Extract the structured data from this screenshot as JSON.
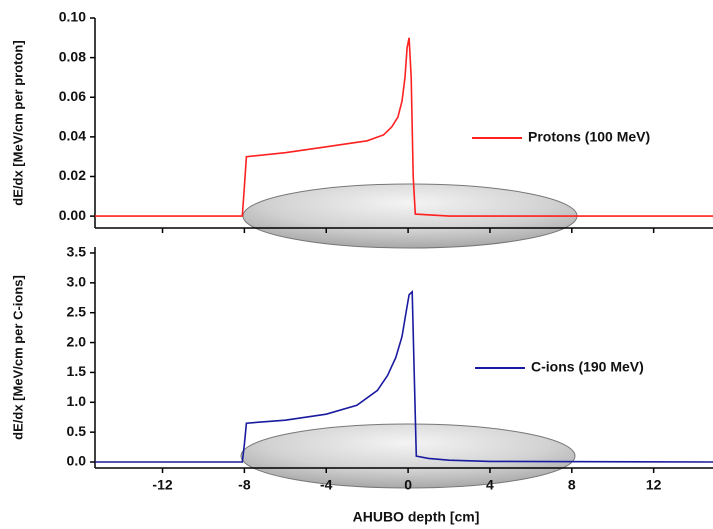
{
  "chart_data": [
    {
      "type": "line",
      "ylabel": "dE/dx [MeV/cm per proton]",
      "x": [
        -15.3,
        -8.1,
        -8.0,
        -7.9,
        -6,
        -4,
        -2,
        -1.2,
        -0.8,
        -0.5,
        -0.3,
        -0.15,
        -0.05,
        0.05,
        0.15,
        0.25,
        0.35,
        2,
        14.9
      ],
      "series": [
        {
          "name": "Protons (100 MeV)",
          "color": "#ff2020",
          "values": [
            0,
            0,
            0.015,
            0.03,
            0.032,
            0.035,
            0.038,
            0.041,
            0.045,
            0.05,
            0.058,
            0.07,
            0.085,
            0.09,
            0.07,
            0.02,
            0.001,
            0,
            0
          ]
        }
      ],
      "xlim": [
        -15.3,
        14.9
      ],
      "ylim": [
        -0.006,
        0.1
      ],
      "yticks": [
        {
          "value": 0,
          "label": "0.00"
        },
        0.02,
        0.04,
        0.06,
        0.08,
        {
          "value": 0.1,
          "label": "0.10"
        }
      ]
    },
    {
      "type": "line",
      "ylabel": "dE/dx [MeV/cm per C-ions]",
      "xlabel": "AHUBO depth [cm]",
      "x": [
        -15.3,
        -8.1,
        -8.0,
        -7.9,
        -6,
        -4,
        -2.5,
        -1.5,
        -1.0,
        -0.6,
        -0.3,
        -0.1,
        0.05,
        0.2,
        0.3,
        0.4,
        1,
        2,
        4,
        14.9
      ],
      "series": [
        {
          "name": "C-ions (190 MeV)",
          "color": "#1a1aa0",
          "values": [
            0,
            0,
            0.3,
            0.65,
            0.7,
            0.8,
            0.95,
            1.2,
            1.45,
            1.75,
            2.1,
            2.5,
            2.8,
            2.85,
            1.5,
            0.1,
            0.06,
            0.03,
            0.01,
            0
          ]
        }
      ],
      "xlim": [
        -15.3,
        14.9
      ],
      "ylim": [
        -0.1,
        3.6
      ],
      "xticks": [
        -12,
        -8,
        -4,
        0,
        4,
        8,
        12
      ],
      "yticks": [
        {
          "value": 0,
          "label": "0.0"
        },
        0.5,
        {
          "value": 1,
          "label": "1.0"
        },
        1.5,
        {
          "value": 2,
          "label": "2.0"
        },
        2.5,
        {
          "value": 3,
          "label": "3.0"
        },
        3.5
      ]
    }
  ]
}
